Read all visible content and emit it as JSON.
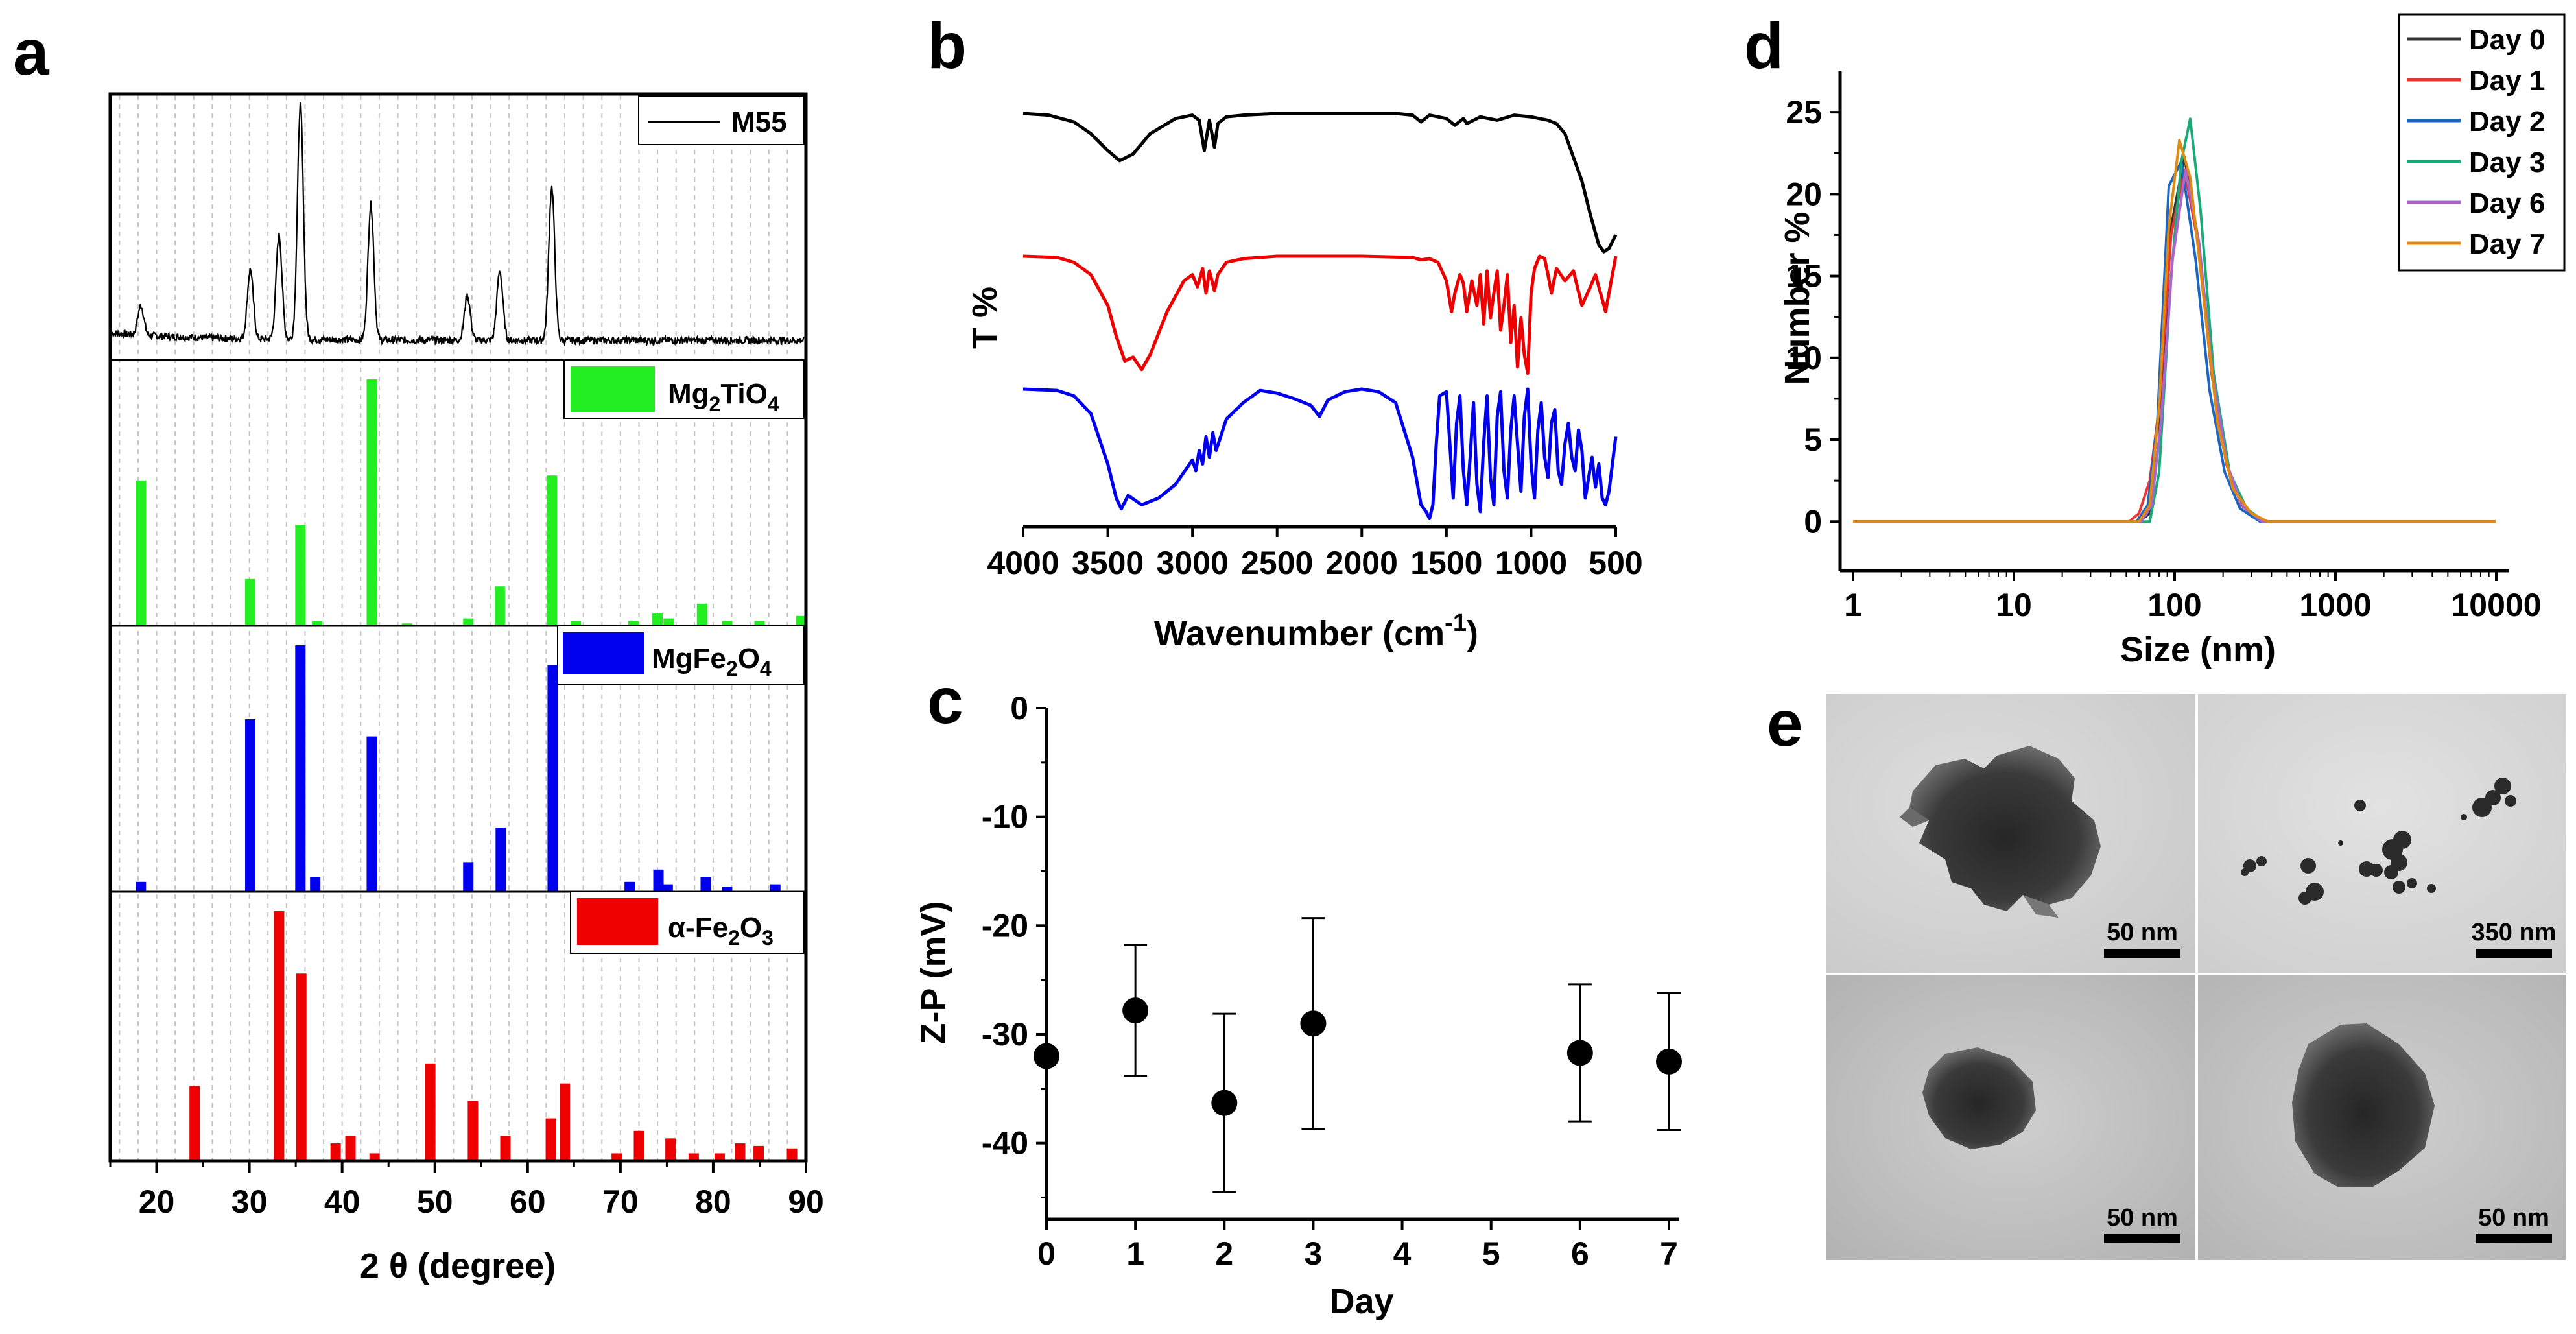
{
  "panels": {
    "a": "a",
    "b": "b",
    "c": "c",
    "d": "d",
    "e": "e"
  },
  "chart_data": [
    {
      "panel": "a",
      "type": "bar",
      "xlabel": "2 θ (degree)",
      "xlim": [
        15,
        90
      ],
      "xticks": [
        20,
        30,
        40,
        50,
        60,
        70,
        80,
        90
      ],
      "grid": "vertical dashed",
      "pattern": {
        "name": "M55",
        "style": "line",
        "color": "#000000",
        "peaks": [
          [
            18.3,
            0.12
          ],
          [
            30.1,
            0.28
          ],
          [
            33.2,
            0.42
          ],
          [
            35.5,
            0.95
          ],
          [
            43.1,
            0.55
          ],
          [
            53.5,
            0.18
          ],
          [
            57.0,
            0.28
          ],
          [
            62.6,
            0.62
          ]
        ]
      },
      "series": [
        {
          "name": "Mg2TiO4",
          "label_main": "Mg",
          "label_sub1": "2",
          "label_mid": "TiO",
          "label_sub2": "4",
          "color": "#22ee22",
          "x": [
            18.3,
            30.1,
            35.5,
            37.3,
            43.2,
            47.0,
            53.6,
            57.0,
            62.6,
            65.2,
            71.4,
            74.0,
            75.2,
            78.8,
            81.5,
            85.0,
            89.5
          ],
          "y": [
            59,
            19,
            41,
            2,
            100,
            1,
            3,
            16,
            61,
            2,
            2,
            5,
            3,
            9,
            2,
            2,
            4
          ]
        },
        {
          "name": "MgFe2O4",
          "label_main": "MgFe",
          "label_sub1": "2",
          "label_mid": "O",
          "label_sub2": "4",
          "color": "#0000ee",
          "x": [
            18.3,
            30.1,
            35.5,
            37.1,
            43.2,
            53.6,
            57.1,
            62.7,
            71.0,
            74.1,
            75.1,
            79.2,
            81.5,
            86.7
          ],
          "y": [
            4,
            70,
            100,
            6,
            63,
            12,
            26,
            92,
            4,
            9,
            3,
            6,
            2,
            3
          ]
        },
        {
          "name": "α-Fe2O3",
          "label_main": "α-Fe",
          "label_sub1": "2",
          "label_mid": "O",
          "label_sub2": "3",
          "color": "#ee0000",
          "x": [
            24.1,
            33.2,
            35.6,
            39.3,
            40.9,
            43.5,
            49.5,
            54.1,
            57.6,
            62.5,
            64.0,
            69.6,
            72.0,
            75.4,
            77.9,
            80.7,
            82.9,
            84.9,
            88.5
          ],
          "y": [
            30,
            100,
            75,
            7,
            10,
            3,
            39,
            24,
            10,
            17,
            31,
            3,
            12,
            9,
            3,
            3,
            7,
            6,
            5
          ]
        }
      ]
    },
    {
      "panel": "b",
      "type": "line",
      "xlabel": "Wavenumber (cm-1)",
      "xlabel_main": "Wavenumber (cm",
      "xlabel_sup": "-1",
      "xlabel_close": ")",
      "ylabel": "T %",
      "xlim": [
        4000,
        500
      ],
      "xticks": [
        4000,
        3500,
        3000,
        2500,
        2000,
        1500,
        1000,
        500
      ],
      "series": [
        {
          "color": "#000000",
          "x": [
            4000,
            3850,
            3700,
            3600,
            3500,
            3430,
            3350,
            3250,
            3100,
            3000,
            2960,
            2930,
            2900,
            2870,
            2850,
            2800,
            2700,
            2500,
            2000,
            1800,
            1700,
            1650,
            1600,
            1500,
            1450,
            1400,
            1380,
            1300,
            1200,
            1100,
            1000,
            900,
            850,
            800,
            700,
            650,
            600,
            570,
            540,
            500
          ],
          "y": [
            100,
            99,
            95,
            88,
            78,
            72,
            76,
            88,
            97,
            99,
            96,
            78,
            96,
            80,
            94,
            98,
            99,
            100,
            100,
            100,
            99,
            95,
            99,
            97,
            93,
            97,
            94,
            98,
            96,
            99,
            98,
            96,
            94,
            88,
            60,
            40,
            22,
            18,
            20,
            28
          ]
        },
        {
          "color": "#ee0000",
          "x": [
            4000,
            3800,
            3700,
            3600,
            3500,
            3450,
            3400,
            3350,
            3300,
            3250,
            3150,
            3050,
            3000,
            2970,
            2940,
            2920,
            2900,
            2870,
            2850,
            2800,
            2700,
            2500,
            2000,
            1700,
            1650,
            1600,
            1550,
            1500,
            1470,
            1450,
            1420,
            1400,
            1380,
            1350,
            1320,
            1300,
            1280,
            1260,
            1240,
            1220,
            1200,
            1180,
            1160,
            1140,
            1120,
            1100,
            1080,
            1060,
            1040,
            1020,
            1000,
            980,
            950,
            920,
            900,
            880,
            850,
            800,
            750,
            700,
            650,
            620,
            600,
            560,
            520,
            500
          ],
          "y": [
            100,
            99,
            95,
            85,
            60,
            35,
            15,
            18,
            8,
            20,
            55,
            80,
            85,
            75,
            90,
            70,
            88,
            72,
            85,
            95,
            98,
            100,
            100,
            99,
            97,
            98,
            95,
            80,
            55,
            70,
            85,
            78,
            55,
            80,
            60,
            85,
            45,
            88,
            50,
            70,
            88,
            40,
            60,
            85,
            30,
            60,
            10,
            50,
            20,
            5,
            70,
            90,
            100,
            98,
            85,
            70,
            90,
            80,
            88,
            60,
            75,
            85,
            75,
            55,
            85,
            100
          ]
        },
        {
          "color": "#0000ee",
          "x": [
            4000,
            3800,
            3700,
            3600,
            3500,
            3450,
            3420,
            3380,
            3300,
            3200,
            3100,
            3000,
            2980,
            2960,
            2940,
            2920,
            2900,
            2880,
            2860,
            2800,
            2700,
            2600,
            2500,
            2400,
            2300,
            2250,
            2200,
            2100,
            2000,
            1900,
            1800,
            1750,
            1700,
            1650,
            1620,
            1600,
            1580,
            1560,
            1540,
            1500,
            1480,
            1460,
            1440,
            1420,
            1400,
            1380,
            1360,
            1340,
            1320,
            1300,
            1280,
            1260,
            1240,
            1220,
            1200,
            1180,
            1160,
            1140,
            1120,
            1100,
            1080,
            1060,
            1040,
            1020,
            1000,
            980,
            960,
            940,
            920,
            900,
            880,
            860,
            840,
            820,
            800,
            780,
            760,
            740,
            720,
            700,
            680,
            660,
            640,
            620,
            600,
            580,
            560,
            540,
            520,
            500
          ],
          "y": [
            100,
            99,
            95,
            82,
            45,
            20,
            12,
            22,
            15,
            20,
            30,
            48,
            40,
            55,
            45,
            65,
            50,
            68,
            55,
            78,
            90,
            99,
            97,
            93,
            88,
            80,
            92,
            98,
            100,
            98,
            90,
            70,
            50,
            15,
            10,
            5,
            15,
            60,
            95,
            98,
            60,
            20,
            75,
            95,
            40,
            15,
            50,
            90,
            30,
            10,
            60,
            95,
            35,
            15,
            80,
            98,
            40,
            20,
            70,
            95,
            60,
            25,
            80,
            100,
            45,
            20,
            70,
            90,
            50,
            35,
            75,
            85,
            40,
            30,
            60,
            75,
            50,
            40,
            70,
            55,
            20,
            35,
            50,
            28,
            45,
            20,
            15,
            25,
            45,
            65
          ]
        }
      ]
    },
    {
      "panel": "c",
      "type": "scatter",
      "xlabel": "Day",
      "ylabel": "Z-P (mV)",
      "xlim": [
        0,
        7
      ],
      "ylim": [
        -47,
        0
      ],
      "xticks": [
        0,
        1,
        2,
        3,
        4,
        5,
        6,
        7
      ],
      "yticks": [
        0,
        -10,
        -20,
        -30,
        -40
      ],
      "points": [
        {
          "x": 0,
          "y": -32.0,
          "err": null
        },
        {
          "x": 1,
          "y": -27.8,
          "err": 6.0
        },
        {
          "x": 2,
          "y": -36.3,
          "err": 8.2
        },
        {
          "x": 3,
          "y": -29.0,
          "err": 9.7
        },
        {
          "x": 6,
          "y": -31.7,
          "err": 6.3
        },
        {
          "x": 7,
          "y": -32.5,
          "err": 6.3
        }
      ]
    },
    {
      "panel": "d",
      "type": "line",
      "xlabel": "Size (nm)",
      "ylabel": "Number %",
      "xscale": "log",
      "xlim": [
        1,
        10000
      ],
      "ylim": [
        -3,
        27.5
      ],
      "xticks": [
        1,
        10,
        100,
        1000,
        10000
      ],
      "yticks": [
        0,
        5,
        10,
        15,
        20,
        25
      ],
      "legend": "top-right",
      "series": [
        {
          "name": "Day 0",
          "color": "#333333",
          "x": [
            1,
            60,
            70,
            80,
            95,
            115,
            140,
            170,
            210,
            260,
            350,
            10000
          ],
          "y": [
            0,
            0,
            0.5,
            5,
            18,
            22.3,
            17,
            9,
            3.5,
            1,
            0,
            0
          ]
        },
        {
          "name": "Day 1",
          "color": "#ee3333",
          "x": [
            1,
            52,
            60,
            70,
            80,
            95,
            115,
            140,
            170,
            210,
            260,
            350,
            10000
          ],
          "y": [
            0,
            0,
            0.5,
            2.5,
            7,
            17.5,
            21.5,
            17,
            9,
            3.5,
            1,
            0,
            0
          ]
        },
        {
          "name": "Day 2",
          "color": "#1a66c2",
          "x": [
            1,
            58,
            68,
            78,
            92,
            110,
            135,
            165,
            205,
            255,
            340,
            10000
          ],
          "y": [
            0,
            0,
            1,
            6,
            20.5,
            22,
            16,
            8,
            3,
            0.8,
            0,
            0
          ]
        },
        {
          "name": "Day 3",
          "color": "#1aaa77",
          "x": [
            1,
            70,
            80,
            95,
            110,
            125,
            145,
            175,
            220,
            280,
            360,
            10000
          ],
          "y": [
            0,
            0,
            3,
            15,
            22,
            24.6,
            19,
            9,
            3,
            0.8,
            0,
            0
          ]
        },
        {
          "name": "Day 6",
          "color": "#aa66cc",
          "x": [
            1,
            62,
            72,
            82,
            97,
            117,
            142,
            172,
            212,
            262,
            350,
            10000
          ],
          "y": [
            0,
            0,
            1,
            6,
            16,
            21.5,
            17,
            9,
            3.5,
            1,
            0,
            0
          ]
        },
        {
          "name": "Day 7",
          "color": "#e08a10",
          "x": [
            1,
            60,
            70,
            80,
            92,
            107,
            125,
            150,
            185,
            230,
            300,
            380,
            10000
          ],
          "y": [
            0,
            0,
            1,
            7,
            18,
            23.3,
            21,
            14,
            6,
            2,
            0.5,
            0,
            0
          ]
        }
      ]
    }
  ],
  "tem": {
    "scalebars": [
      "50 nm",
      "350 nm",
      "50 nm",
      "50 nm"
    ]
  }
}
